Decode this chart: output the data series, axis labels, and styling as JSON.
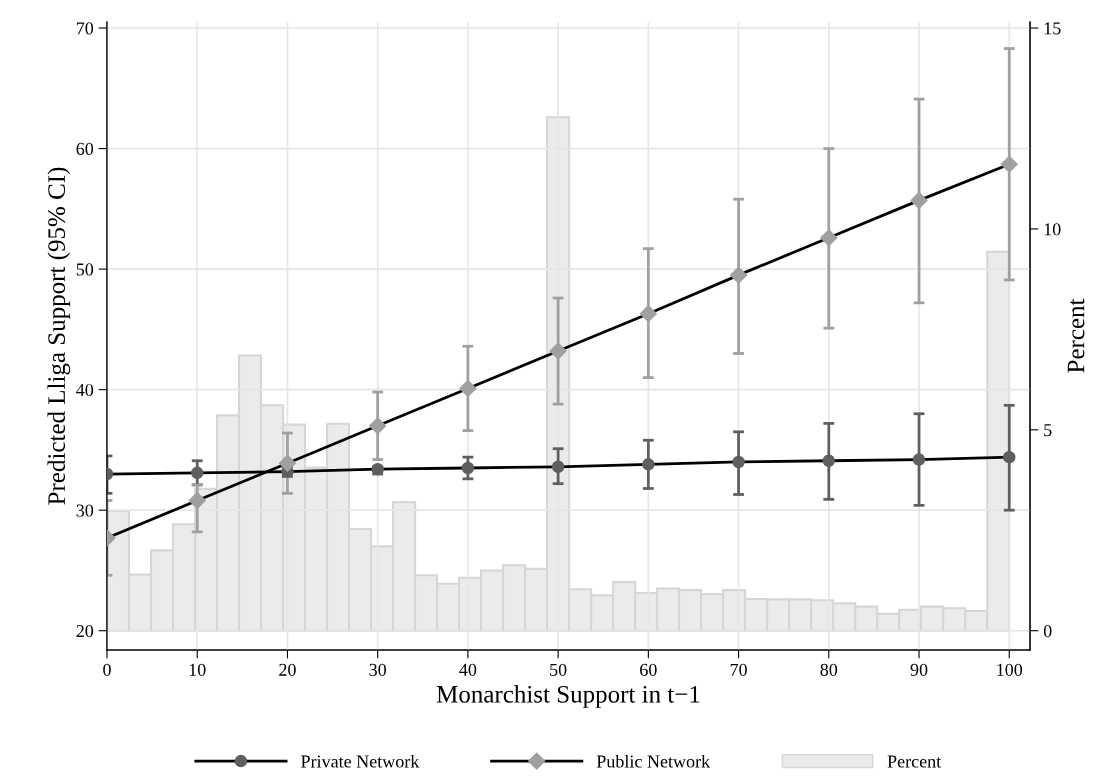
{
  "chart_data": {
    "type": "line",
    "xlabel": "Monarchist Support in t−1",
    "ylabel": "Predicted Lliga Support (95% CI)",
    "y2label": "Percent",
    "xlim": [
      0,
      102.3
    ],
    "xticks": [
      0,
      10,
      20,
      30,
      40,
      50,
      60,
      70,
      80,
      90,
      100
    ],
    "ylim": [
      18.4,
      70.5
    ],
    "yticks": [
      20,
      30,
      40,
      50,
      60,
      70
    ],
    "y2lim": [
      -0.48,
      15.15
    ],
    "y2ticks": [
      0,
      5,
      10,
      15
    ],
    "grid": true,
    "legend": "bottom",
    "series": [
      {
        "name": "Private Network",
        "marker": "circle",
        "color": "#5f5f5f",
        "x": [
          0,
          10,
          20,
          30,
          40,
          50,
          60,
          70,
          80,
          90,
          100
        ],
        "values": [
          33.0,
          33.1,
          33.2,
          33.4,
          33.5,
          33.6,
          33.8,
          34.0,
          34.1,
          34.2,
          34.4
        ],
        "errors": [
          [
            31.4,
            34.5
          ],
          [
            32.1,
            34.1
          ],
          [
            32.8,
            33.6
          ],
          [
            33.0,
            33.6
          ],
          [
            32.6,
            34.4
          ],
          [
            32.2,
            35.1
          ],
          [
            31.8,
            35.8
          ],
          [
            31.3,
            36.5
          ],
          [
            30.9,
            37.2
          ],
          [
            30.4,
            38.0
          ],
          [
            30.0,
            38.7
          ]
        ]
      },
      {
        "name": "Public Network",
        "marker": "diamond",
        "color": "#a0a0a0",
        "x": [
          0,
          10,
          20,
          30,
          40,
          50,
          60,
          70,
          80,
          90,
          100
        ],
        "values": [
          27.7,
          30.8,
          33.9,
          37.0,
          40.1,
          43.2,
          46.3,
          49.5,
          52.6,
          55.7,
          58.7
        ],
        "errors": [
          [
            24.6,
            30.8
          ],
          [
            28.2,
            32.1
          ],
          [
            31.4,
            36.4
          ],
          [
            34.2,
            39.8
          ],
          [
            36.6,
            43.6
          ],
          [
            38.8,
            47.6
          ],
          [
            41.0,
            51.7
          ],
          [
            43.0,
            55.8
          ],
          [
            45.1,
            60.0
          ],
          [
            47.2,
            64.1
          ],
          [
            49.1,
            68.3
          ]
        ]
      },
      {
        "name": "Percent",
        "type": "histogram",
        "axis": "y2",
        "color": "#ebebeb",
        "bins": [
          0,
          2.44,
          4.88,
          7.32,
          9.76,
          12.2,
          14.63,
          17.07,
          19.51,
          21.95,
          24.39,
          26.83,
          29.27,
          31.71,
          34.15,
          36.59,
          39.02,
          41.46,
          43.9,
          46.34,
          48.78,
          51.22,
          53.66,
          56.1,
          58.54,
          60.98,
          63.41,
          65.85,
          68.29,
          70.73,
          73.17,
          75.61,
          78.05,
          80.49,
          82.93,
          85.37,
          87.8,
          90.24,
          92.68,
          95.12,
          97.56,
          100
        ],
        "values": [
          2.98,
          1.4,
          2.0,
          2.65,
          3.53,
          5.36,
          6.85,
          5.61,
          5.13,
          4.06,
          5.15,
          2.53,
          2.1,
          3.2,
          1.38,
          1.17,
          1.32,
          1.5,
          1.63,
          1.54,
          12.78,
          1.03,
          0.88,
          1.21,
          0.94,
          1.05,
          1.01,
          0.91,
          1.01,
          0.79,
          0.78,
          0.78,
          0.76,
          0.68,
          0.6,
          0.42,
          0.52,
          0.6,
          0.56,
          0.49,
          9.43
        ]
      }
    ]
  }
}
